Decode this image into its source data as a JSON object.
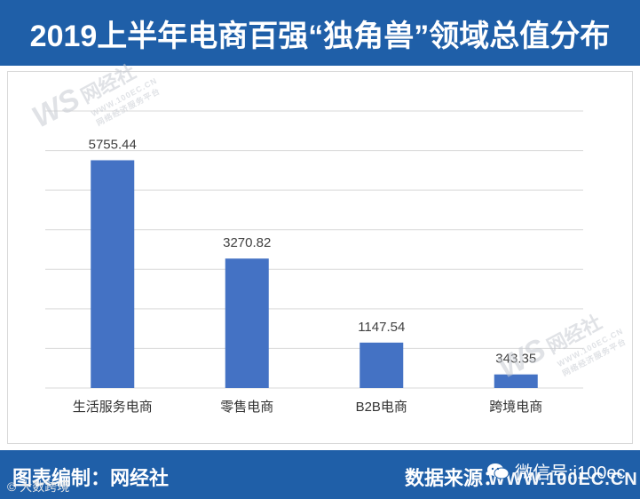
{
  "header": {
    "title": "2019上半年电商百强“独角兽”领域总值分布"
  },
  "chart_data": {
    "type": "bar",
    "categories": [
      "生活服务电商",
      "零售电商",
      "B2B电商",
      "跨境电商"
    ],
    "values": [
      5755.44,
      3270.82,
      1147.54,
      343.35
    ],
    "value_labels": [
      "5755.44",
      "3270.82",
      "1147.54",
      "343.35"
    ],
    "ylim": [
      0,
      7000
    ],
    "grid": true,
    "bar_color": "#4472c4",
    "title": "",
    "xlabel": "",
    "ylabel": ""
  },
  "watermarks": [
    {
      "logo": "WS",
      "name": "网经社",
      "url": "WWW.100EC.CN",
      "tagline": "网络经济服务平台"
    },
    {
      "logo": "WS",
      "name": "网经社",
      "url": "WWW.100EC.CN",
      "tagline": "网络经济服务平台"
    }
  ],
  "footer": {
    "credit": "图表编制：网经社",
    "source_label": "数据来源：",
    "source_url": "WWW.100EC.CN",
    "wechat": "微信号:i100ec",
    "source_mark": "© 大数跨境"
  },
  "colors": {
    "header_bg": "#1f5fa8",
    "footer_bg": "#1f5fa8",
    "grid": "#d9d9d9"
  }
}
